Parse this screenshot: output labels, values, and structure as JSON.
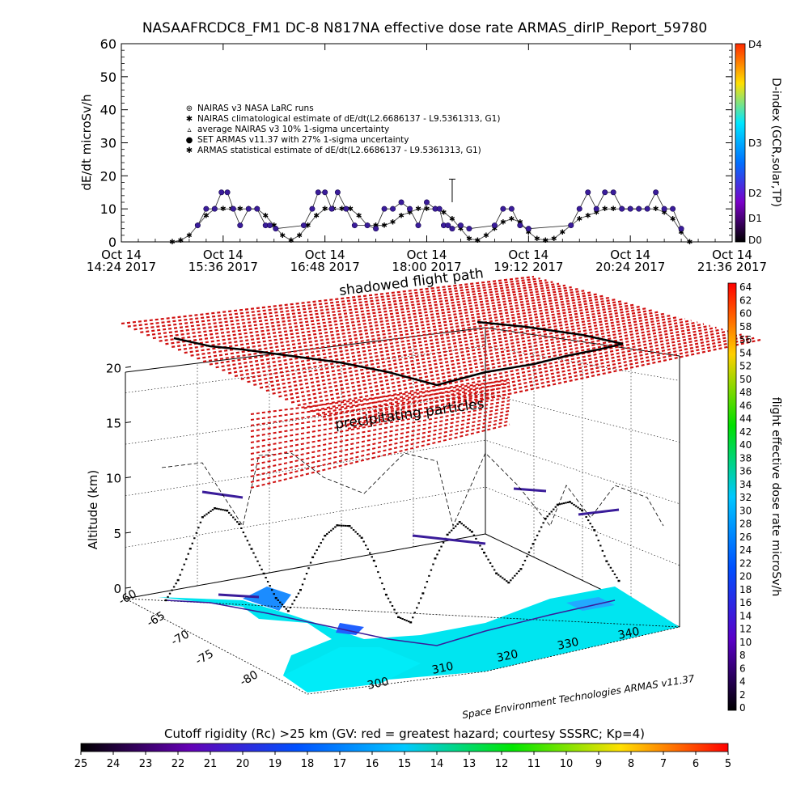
{
  "chart_data": [
    {
      "type": "scatter",
      "title": "NASAAFRCDC8_FM1 DC-8    N817NA effective dose rate ARMAS_dirIP_Report_59780",
      "ylabel": "dE/dt microSv/h",
      "ylim": [
        0,
        60
      ],
      "yticks": [
        "0",
        "10",
        "20",
        "30",
        "40",
        "50",
        "60"
      ],
      "xlim": [
        "2017-10-14T14:24",
        "2017-10-14T21:36"
      ],
      "xticks": [
        {
          "line1": "Oct  14",
          "line2": "14:24  2017"
        },
        {
          "line1": "Oct  14",
          "line2": "15:36  2017"
        },
        {
          "line1": "Oct  14",
          "line2": "16:48  2017"
        },
        {
          "line1": "Oct  14",
          "line2": "18:00  2017"
        },
        {
          "line1": "Oct  14",
          "line2": "19:12  2017"
        },
        {
          "line1": "Oct  14",
          "line2": "20:24  2017"
        },
        {
          "line1": "Oct  14",
          "line2": "21:36  2017"
        }
      ],
      "legend": [
        {
          "symbol": "⊛",
          "label": "NAIRAS v3 NASA LaRC runs"
        },
        {
          "symbol": "✱",
          "label": "NAIRAS climatological estimate of dE/dt(L2.6686137 - L9.5361313, G1)"
        },
        {
          "symbol": "▵",
          "label": "average NAIRAS v3 10% 1-sigma uncertainty"
        },
        {
          "symbol": "●",
          "label": "SET ARMAS v11.37 with 27% 1-sigma uncertainty"
        },
        {
          "symbol": "✱",
          "label": "ARMAS statistical estimate of dE/dt(L2.6686137 - L9.5361313, G1)"
        }
      ],
      "legend_position": "upper-left",
      "series": [
        {
          "name": "SET ARMAS v11.37 with 27% 1-sigma uncertainty",
          "color": "#3a1c9a",
          "time_h": [
            15.3,
            15.4,
            15.5,
            15.58,
            15.65,
            15.72,
            15.8,
            15.9,
            16.0,
            16.1,
            16.15,
            16.22,
            16.55,
            16.65,
            16.72,
            16.8,
            16.88,
            16.95,
            17.05,
            17.15,
            17.3,
            17.4,
            17.5,
            17.6,
            17.7,
            17.8,
            17.9,
            18.0,
            18.1,
            18.15,
            18.2,
            18.25,
            18.3,
            18.4,
            18.5,
            18.8,
            18.9,
            19.0,
            19.1,
            19.2,
            19.7,
            19.8,
            19.9,
            20.0,
            20.1,
            20.2,
            20.3,
            20.4,
            20.5,
            20.6,
            20.7,
            20.8,
            20.9,
            21.0
          ],
          "values": [
            5,
            10,
            10,
            15,
            15,
            10,
            5,
            10,
            10,
            5,
            5,
            4,
            5,
            10,
            15,
            15,
            10,
            15,
            10,
            5,
            5,
            4,
            10,
            10,
            12,
            10,
            5,
            12,
            10,
            10,
            5,
            5,
            4,
            5,
            4,
            5,
            10,
            10,
            5,
            4,
            5,
            10,
            15,
            10,
            15,
            15,
            10,
            10,
            10,
            10,
            15,
            10,
            10,
            4
          ]
        },
        {
          "name": "NAIRAS v3 NASA LaRC runs",
          "color": "#000000",
          "time_h": [
            15.0,
            15.1,
            15.2,
            15.3,
            15.4,
            15.5,
            15.6,
            15.7,
            15.8,
            15.9,
            16.0,
            16.1,
            16.2,
            16.3,
            16.4,
            16.5,
            16.6,
            16.7,
            16.8,
            16.9,
            17.0,
            17.1,
            17.2,
            17.3,
            17.4,
            17.5,
            17.6,
            17.7,
            17.8,
            17.9,
            18.0,
            18.1,
            18.2,
            18.3,
            18.4,
            18.5,
            18.6,
            18.7,
            18.8,
            18.9,
            19.0,
            19.1,
            19.2,
            19.3,
            19.4,
            19.5,
            19.6,
            19.7,
            19.8,
            19.9,
            20.0,
            20.1,
            20.2,
            20.3,
            20.4,
            20.5,
            20.6,
            20.7,
            20.8,
            20.9,
            21.0,
            21.1
          ],
          "values": [
            0,
            0.5,
            2,
            5,
            8,
            10,
            10,
            10,
            10,
            10,
            10,
            8,
            5,
            2,
            0.5,
            2,
            5,
            8,
            10,
            10,
            10,
            10,
            8,
            5,
            5,
            5,
            6,
            8,
            9,
            10,
            10,
            10,
            9,
            7,
            4,
            1,
            0.5,
            2,
            4,
            6,
            7,
            6,
            3,
            1,
            0.5,
            1,
            3,
            5,
            7,
            8,
            9,
            10,
            10,
            10,
            10,
            10,
            10,
            10,
            9,
            7,
            3,
            0
          ]
        }
      ],
      "error_bar": {
        "time_h": 18.3,
        "value": 12,
        "upper": 19
      },
      "colorbar": {
        "label": "D-index (GCR,solar,TP)",
        "ticks": [
          "D4",
          "D3",
          "D2",
          "D1",
          "D0"
        ],
        "colors": [
          "#ff2a00",
          "#ffe000",
          "#00e6ff",
          "#0070ff",
          "#7a00c8",
          "#000000"
        ]
      }
    },
    {
      "type": "scatter3d",
      "zlabel": "Altitude (km)",
      "zticks": [
        "0",
        "5",
        "10",
        "15",
        "20"
      ],
      "lat_ticks": [
        "-60",
        "-65",
        "-70",
        "-75",
        "-80"
      ],
      "lon_ticks": [
        "300",
        "310",
        "320",
        "330",
        "340"
      ],
      "annotations": [
        "shadowed flight path",
        "precipitating particles"
      ],
      "credit": "Space Environment Technologies ARMAS v11.37",
      "colorbar": {
        "label": "flight effective dose rate microSv/h",
        "ticks": [
          "64",
          "62",
          "60",
          "58",
          "56",
          "54",
          "52",
          "50",
          "48",
          "46",
          "44",
          "42",
          "40",
          "38",
          "36",
          "34",
          "32",
          "30",
          "28",
          "26",
          "24",
          "22",
          "20",
          "18",
          "16",
          "14",
          "12",
          "10",
          "8",
          "6",
          "4",
          "2",
          "0"
        ],
        "colors": [
          "#ff0000",
          "#ffd000",
          "#00e000",
          "#00c8ff",
          "#0050ff",
          "#5a00c8",
          "#000000"
        ]
      },
      "flight_altitude_km": [
        0,
        2,
        5,
        8,
        9,
        9,
        8,
        6,
        4,
        2,
        1,
        3,
        6,
        8,
        9,
        9,
        8,
        6,
        3,
        1,
        0.5,
        3,
        6,
        8,
        9,
        8,
        6,
        4,
        3,
        4,
        6,
        8,
        9,
        9,
        8,
        6,
        3,
        1
      ]
    },
    {
      "type": "colorbar",
      "title": "Cutoff rigidity (Rc) >25 km (GV: red = greatest hazard; courtesy SSSRC; Kp=4)",
      "ticks": [
        "25",
        "24",
        "23",
        "22",
        "21",
        "20",
        "19",
        "18",
        "17",
        "16",
        "15",
        "14",
        "13",
        "12",
        "11",
        "10",
        "9",
        "8",
        "7",
        "6",
        "5"
      ],
      "colors": [
        "#000000",
        "#6400b4",
        "#0050ff",
        "#00c8ff",
        "#00e600",
        "#ffe000",
        "#ff0000"
      ]
    }
  ]
}
